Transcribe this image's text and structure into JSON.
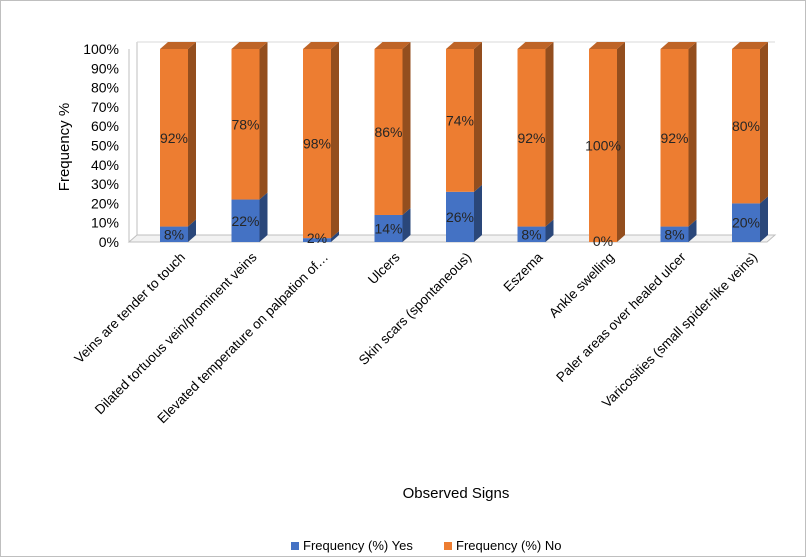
{
  "chart_data": {
    "type": "bar",
    "stacked": true,
    "three_d": true,
    "categories": [
      "Veins are tender to touch",
      "Dilated tortuous vein/prominent veins",
      "Elevated temperature on palpation of…",
      "Ulcers",
      "Skin scars (spontaneous)",
      "Eszema",
      "Ankle swelling",
      "Paler areas over healed ulcer",
      "Varicosities (small spider-like veins)"
    ],
    "series": [
      {
        "name": "Frequency (%) Yes",
        "values": [
          8,
          22,
          2,
          14,
          26,
          8,
          0,
          8,
          20
        ],
        "labels": [
          "8%",
          "22%",
          "2%",
          "14%",
          "26%",
          "8%",
          "0%",
          "8%",
          "20%"
        ],
        "color": "#4472c4"
      },
      {
        "name": "Frequency (%) No",
        "values": [
          92,
          78,
          98,
          86,
          74,
          92,
          100,
          92,
          80
        ],
        "labels": [
          "92%",
          "78%",
          "98%",
          "86%",
          "74%",
          "92%",
          "100%",
          "92%",
          "80%"
        ],
        "color": "#ed7d31"
      }
    ],
    "title": "",
    "xlabel": "Observed Signs",
    "ylabel": "Frequency %",
    "ylim": [
      0,
      100
    ],
    "yticks": [
      "0%",
      "10%",
      "20%",
      "30%",
      "40%",
      "50%",
      "60%",
      "70%",
      "80%",
      "90%",
      "100%"
    ],
    "grid": false,
    "legend_position": "bottom"
  }
}
